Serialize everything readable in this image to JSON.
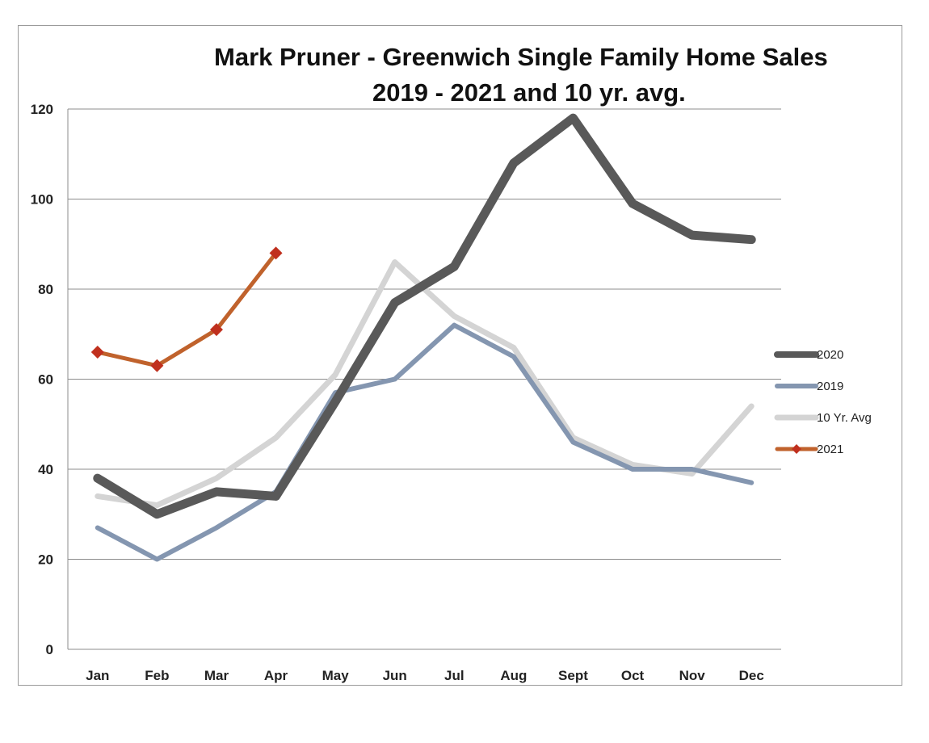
{
  "chart_data": {
    "type": "line",
    "title": "Mark Pruner - Greenwich Single Family Home Sales",
    "subtitle": "2019 - 2021 and 10 yr. avg.",
    "xlabel": "",
    "ylabel": "",
    "categories": [
      "Jan",
      "Feb",
      "Mar",
      "Apr",
      "May",
      "Jun",
      "Jul",
      "Aug",
      "Sept",
      "Oct",
      "Nov",
      "Dec"
    ],
    "ylim": [
      0,
      120
    ],
    "yticks": [
      "0",
      "20",
      "40",
      "60",
      "80",
      "100",
      "120"
    ],
    "grid": true,
    "legend_position": "right",
    "series": [
      {
        "name": "2020",
        "color": "#595959",
        "values": [
          38,
          30,
          35,
          34,
          55,
          77,
          85,
          108,
          118,
          99,
          92,
          91
        ]
      },
      {
        "name": "2019",
        "color": "#8496b0",
        "values": [
          27,
          20,
          27,
          35,
          57,
          60,
          72,
          65,
          46,
          40,
          40,
          37
        ]
      },
      {
        "name": "10 Yr. Avg",
        "color": "#d4d4d4",
        "values": [
          34,
          32,
          38,
          47,
          61,
          86,
          74,
          67,
          47,
          41,
          39,
          54
        ]
      },
      {
        "name": "2021",
        "color": "#c0622c",
        "marker": "diamond",
        "marker_color": "#c0301e",
        "values": [
          66,
          63,
          71,
          88,
          null,
          null,
          null,
          null,
          null,
          null,
          null,
          null
        ]
      }
    ]
  }
}
